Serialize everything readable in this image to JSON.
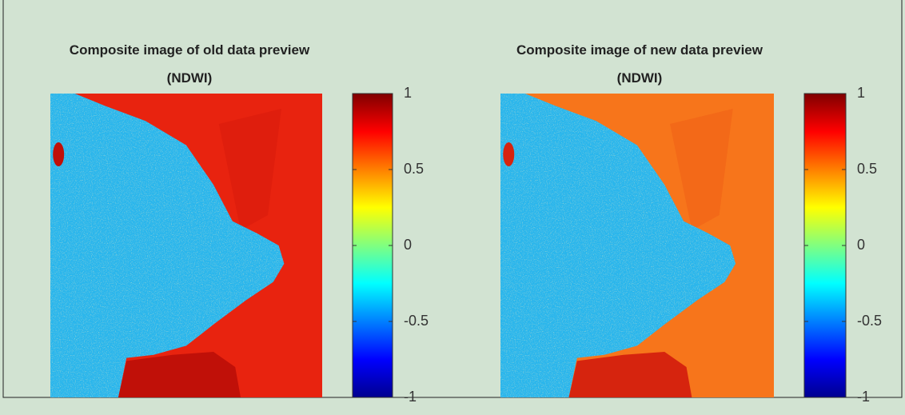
{
  "chart_data": [
    {
      "type": "image",
      "title": "Composite image of old data preview",
      "subtitle": "(NDWI)",
      "colormap": "jet",
      "clim": [
        -1,
        1
      ],
      "cticks": [
        -1,
        -0.5,
        0,
        0.5,
        1
      ]
    },
    {
      "type": "image",
      "title": "Composite image of new data preview",
      "subtitle": "(NDWI)",
      "colormap": "jet",
      "clim": [
        -1,
        1
      ],
      "cticks": [
        -1,
        -0.5,
        0,
        0.5,
        1
      ]
    }
  ]
}
